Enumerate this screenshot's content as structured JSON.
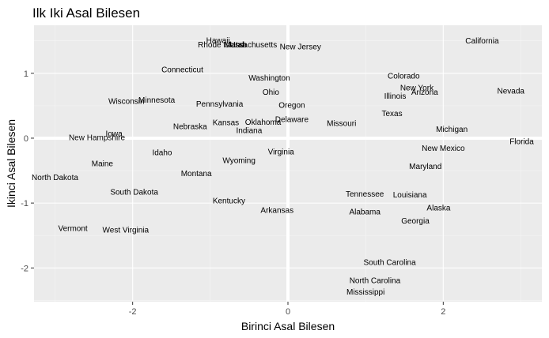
{
  "chart_data": {
    "type": "scatter",
    "title": "Ilk Iki Asal Bilesen",
    "xlabel": "Birinci Asal Bilesen",
    "ylabel": "Ikinci Asal Bilesen",
    "xlim": [
      -3.27,
      3.27
    ],
    "ylim": [
      -2.52,
      1.74
    ],
    "xticks": [
      -2,
      0,
      2
    ],
    "yticks": [
      -2,
      -1,
      0,
      1
    ],
    "xtick_labels": [
      "-2",
      "0",
      "2"
    ],
    "ytick_labels": [
      "-2",
      "-1",
      "0",
      "1"
    ],
    "zero_lines": true,
    "grid": true,
    "panel_background": "#ebebeb",
    "points": [
      {
        "label": "Hawaii",
        "x": -0.9,
        "y": 1.51
      },
      {
        "label": "Rhode Island",
        "x": -0.86,
        "y": 1.44
      },
      {
        "label": "Massachusetts",
        "x": -0.48,
        "y": 1.44
      },
      {
        "label": "Utah",
        "x": -0.64,
        "y": 1.44
      },
      {
        "label": "New Jersey",
        "x": 0.16,
        "y": 1.41
      },
      {
        "label": "California",
        "x": 2.5,
        "y": 1.5
      },
      {
        "label": "Connecticut",
        "x": -1.36,
        "y": 1.06
      },
      {
        "label": "Washington",
        "x": -0.24,
        "y": 0.93
      },
      {
        "label": "Colorado",
        "x": 1.49,
        "y": 0.96
      },
      {
        "label": "New York",
        "x": 1.66,
        "y": 0.78
      },
      {
        "label": "Arizona",
        "x": 1.76,
        "y": 0.71
      },
      {
        "label": "Illinois",
        "x": 1.38,
        "y": 0.65
      },
      {
        "label": "Nevada",
        "x": 2.87,
        "y": 0.73
      },
      {
        "label": "Ohio",
        "x": -0.22,
        "y": 0.71
      },
      {
        "label": "Wisconsin",
        "x": -2.08,
        "y": 0.57
      },
      {
        "label": "Minnesota",
        "x": -1.69,
        "y": 0.59
      },
      {
        "label": "Pennsylvania",
        "x": -0.88,
        "y": 0.53
      },
      {
        "label": "Oregon",
        "x": 0.05,
        "y": 0.51
      },
      {
        "label": "Texas",
        "x": 1.34,
        "y": 0.38
      },
      {
        "label": "Delaware",
        "x": 0.05,
        "y": 0.29
      },
      {
        "label": "Kansas",
        "x": -0.8,
        "y": 0.24
      },
      {
        "label": "Oklahoma",
        "x": -0.32,
        "y": 0.25
      },
      {
        "label": "Missouri",
        "x": 0.69,
        "y": 0.23
      },
      {
        "label": "Nebraska",
        "x": -1.26,
        "y": 0.18
      },
      {
        "label": "Indiana",
        "x": -0.5,
        "y": 0.12
      },
      {
        "label": "Michigan",
        "x": 2.11,
        "y": 0.14
      },
      {
        "label": "Iowa",
        "x": -2.24,
        "y": 0.07
      },
      {
        "label": "New Hampshire",
        "x": -2.46,
        "y": 0.01
      },
      {
        "label": "Florida",
        "x": 3.01,
        "y": -0.05
      },
      {
        "label": "New Mexico",
        "x": 2.0,
        "y": -0.15
      },
      {
        "label": "Idaho",
        "x": -1.62,
        "y": -0.22
      },
      {
        "label": "Virginia",
        "x": -0.09,
        "y": -0.21
      },
      {
        "label": "Wyoming",
        "x": -0.63,
        "y": -0.34
      },
      {
        "label": "Maine",
        "x": -2.39,
        "y": -0.39
      },
      {
        "label": "Maryland",
        "x": 1.77,
        "y": -0.43
      },
      {
        "label": "Montana",
        "x": -1.18,
        "y": -0.54
      },
      {
        "label": "North Dakota",
        "x": -3.0,
        "y": -0.6
      },
      {
        "label": "South Dakota",
        "x": -1.98,
        "y": -0.83
      },
      {
        "label": "Tennessee",
        "x": 0.99,
        "y": -0.86
      },
      {
        "label": "Louisiana",
        "x": 1.57,
        "y": -0.87
      },
      {
        "label": "Kentucky",
        "x": -0.76,
        "y": -0.96
      },
      {
        "label": "Alaska",
        "x": 1.94,
        "y": -1.07
      },
      {
        "label": "Arkansas",
        "x": -0.14,
        "y": -1.11
      },
      {
        "label": "Alabama",
        "x": 0.99,
        "y": -1.13
      },
      {
        "label": "Georgia",
        "x": 1.64,
        "y": -1.27
      },
      {
        "label": "Vermont",
        "x": -2.77,
        "y": -1.39
      },
      {
        "label": "West Virginia",
        "x": -2.09,
        "y": -1.41
      },
      {
        "label": "South Carolina",
        "x": 1.31,
        "y": -1.91
      },
      {
        "label": "North Carolina",
        "x": 1.12,
        "y": -2.19
      },
      {
        "label": "Mississippi",
        "x": 1.0,
        "y": -2.37
      }
    ]
  }
}
